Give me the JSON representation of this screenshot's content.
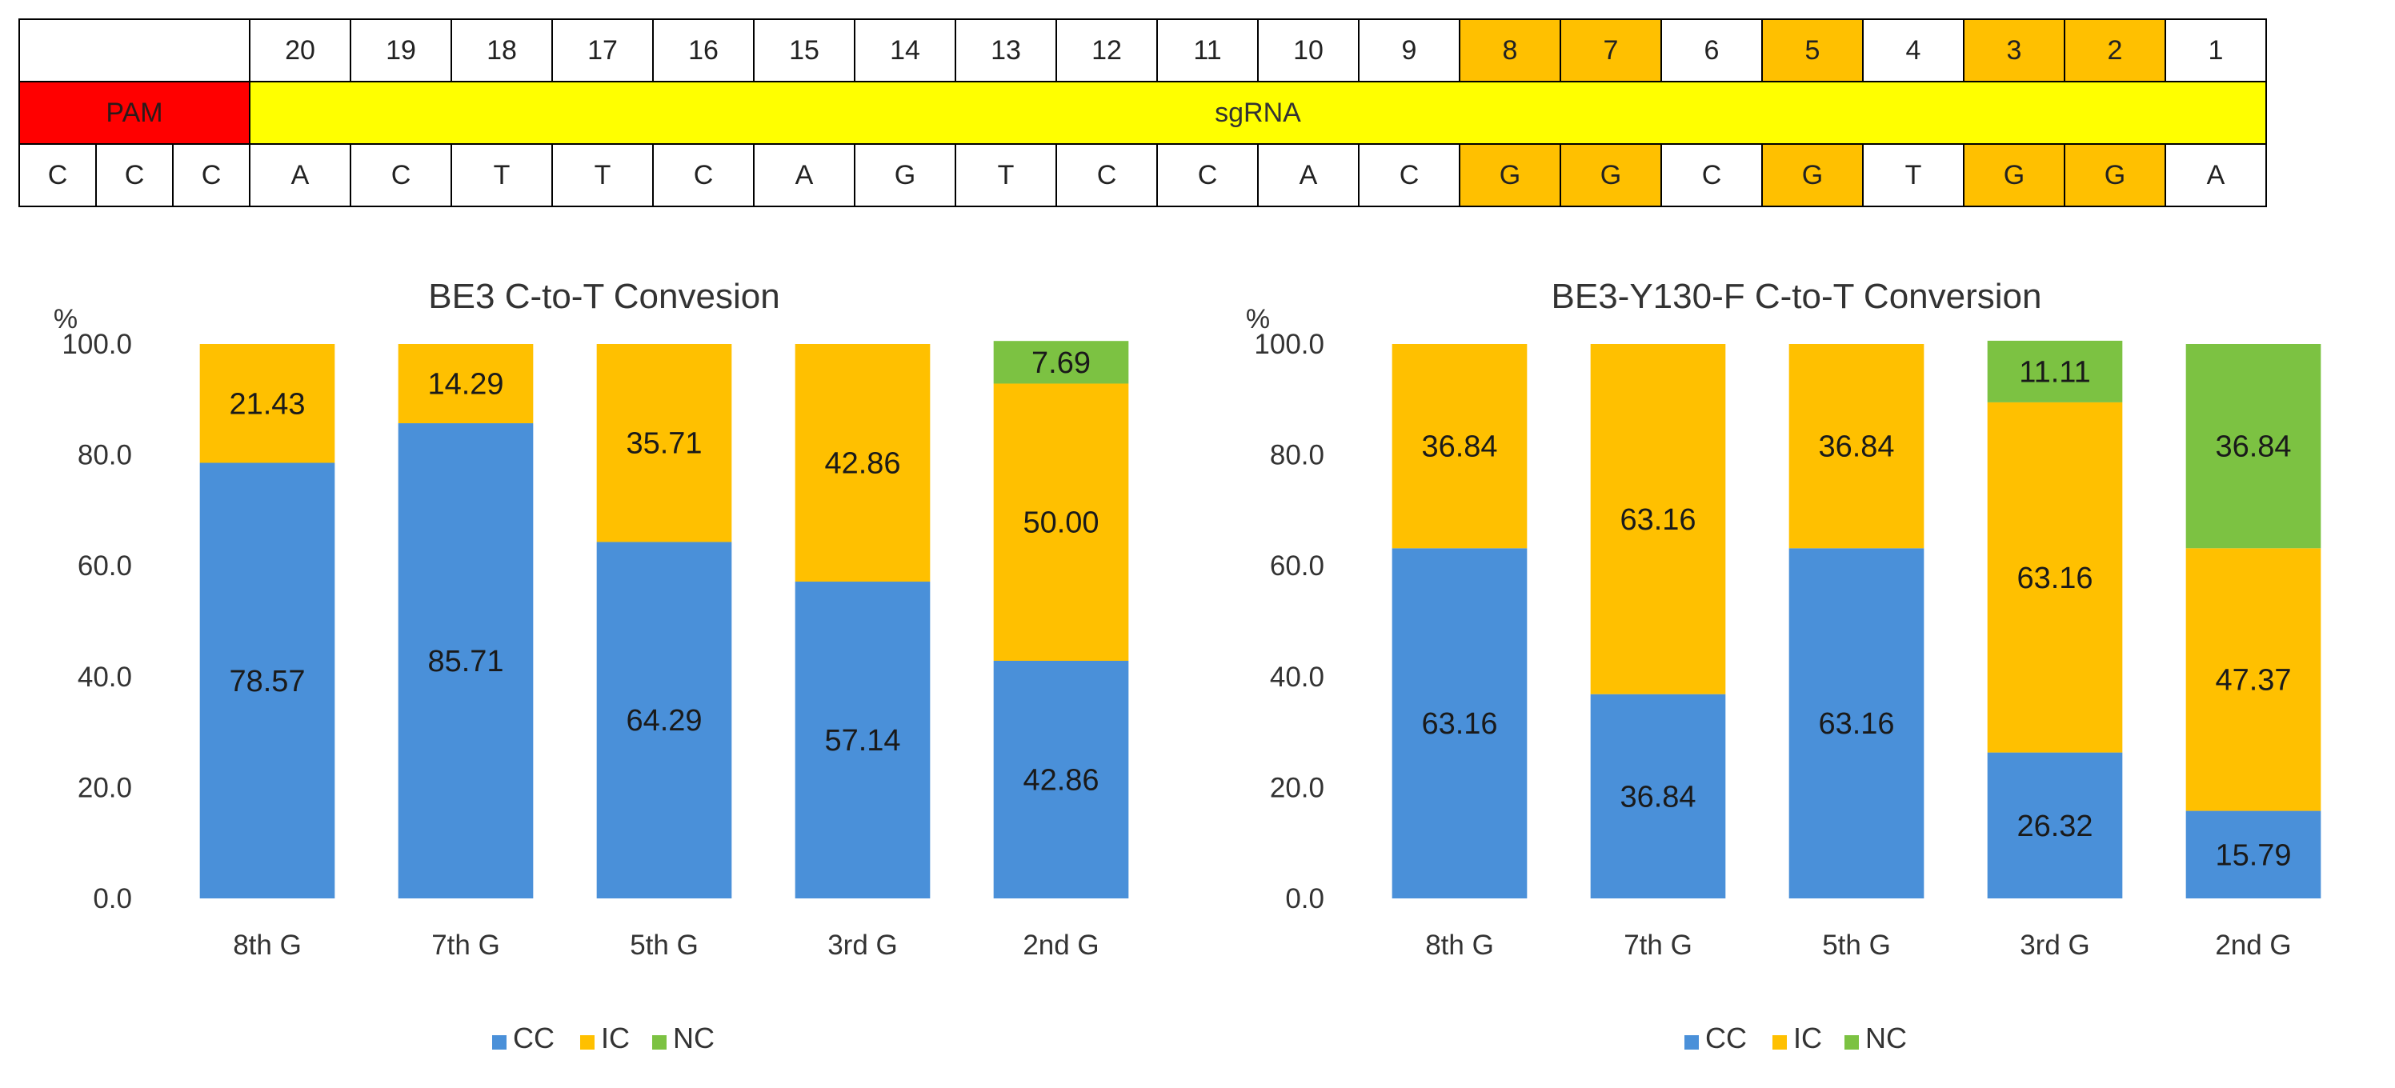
{
  "sequence": {
    "positions": [
      "20",
      "19",
      "18",
      "17",
      "16",
      "15",
      "14",
      "13",
      "12",
      "11",
      "10",
      "9",
      "8",
      "7",
      "6",
      "5",
      "4",
      "3",
      "2",
      "1"
    ],
    "highlighted_positions": [
      "8",
      "7",
      "5",
      "3",
      "2"
    ],
    "pam_label": "PAM",
    "sgrna_label": "sgRNA",
    "pam_bases": [
      "C",
      "C",
      "C"
    ],
    "sgrna_bases": [
      "A",
      "C",
      "T",
      "T",
      "C",
      "A",
      "G",
      "T",
      "C",
      "C",
      "A",
      "C",
      "G",
      "G",
      "C",
      "G",
      "T",
      "G",
      "G",
      "A"
    ],
    "colors": {
      "highlight": "#ffc000",
      "pam": "#ff0000",
      "sgrna": "#ffff00"
    }
  },
  "chart_data": [
    {
      "type": "bar",
      "stacked": true,
      "title": "BE3 C-to-T Convesion",
      "ylabel": "%",
      "ylim": [
        0,
        100
      ],
      "yticks": [
        "0.0",
        "20.0",
        "40.0",
        "60.0",
        "80.0",
        "100.0"
      ],
      "categories": [
        "8th G",
        "7th G",
        "5th G",
        "3rd G",
        "2nd G"
      ],
      "series": [
        {
          "name": "CC",
          "color": "#4a90d9",
          "values": [
            78.57,
            85.71,
            64.29,
            57.14,
            42.86
          ],
          "labels": [
            "78.57",
            "85.71",
            "64.29",
            "57.14",
            "42.86"
          ]
        },
        {
          "name": "IC",
          "color": "#ffc000",
          "values": [
            21.43,
            14.29,
            35.71,
            42.86,
            50.0
          ],
          "labels": [
            "21.43",
            "14.29",
            "35.71",
            "42.86",
            "50.00"
          ]
        },
        {
          "name": "NC",
          "color": "#7cc242",
          "values": [
            0,
            0,
            0,
            0,
            7.69
          ],
          "labels": [
            "",
            "",
            "",
            "",
            "7.69"
          ]
        }
      ],
      "grid": false,
      "legend": "bottom"
    },
    {
      "type": "bar",
      "stacked": true,
      "title": "BE3-Y130-F C-to-T Conversion",
      "ylabel": "%",
      "ylim": [
        0,
        100
      ],
      "yticks": [
        "0.0",
        "20.0",
        "40.0",
        "60.0",
        "80.0",
        "100.0"
      ],
      "categories": [
        "8th G",
        "7th G",
        "5th G",
        "3rd G",
        "2nd G"
      ],
      "series": [
        {
          "name": "CC",
          "color": "#4a90d9",
          "values": [
            63.16,
            36.84,
            63.16,
            26.32,
            15.79
          ],
          "labels": [
            "63.16",
            "36.84",
            "63.16",
            "26.32",
            "15.79"
          ]
        },
        {
          "name": "IC",
          "color": "#ffc000",
          "values": [
            36.84,
            63.16,
            36.84,
            63.16,
            47.37
          ],
          "labels": [
            "36.84",
            "63.16",
            "36.84",
            "63.16",
            "47.37"
          ]
        },
        {
          "name": "NC",
          "color": "#7cc242",
          "values": [
            0,
            0,
            0,
            11.11,
            36.84
          ],
          "labels": [
            "",
            "",
            "",
            "11.11",
            "36.84"
          ]
        }
      ],
      "grid": false,
      "legend": "bottom"
    }
  ]
}
